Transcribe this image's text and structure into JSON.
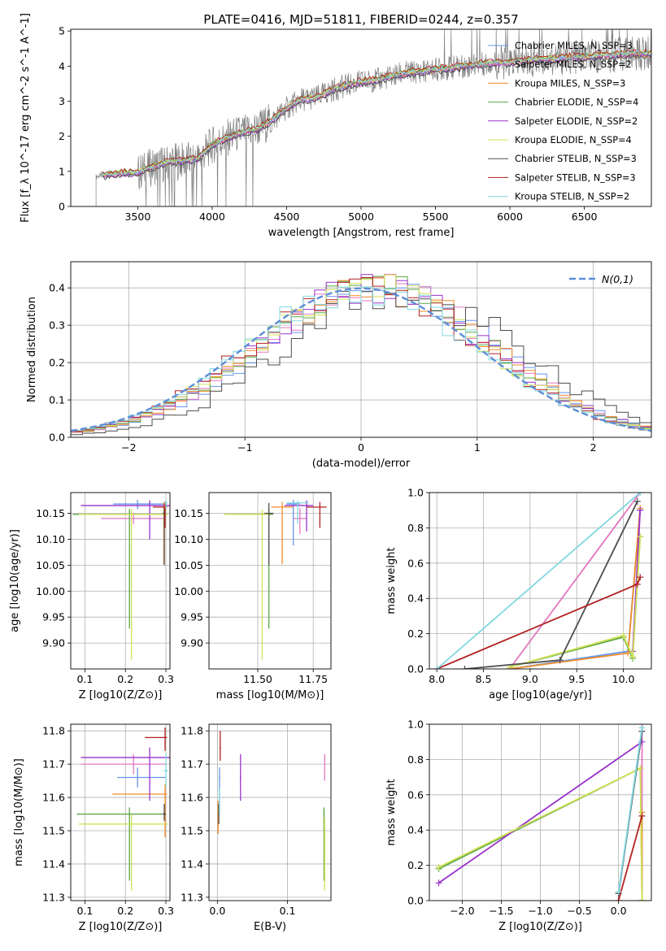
{
  "figure_title": "PLATE=0416, MJD=51811, FIBERID=0244, z=0.357",
  "palette": [
    "#6495ED",
    "#E377C2",
    "#F28C28",
    "#5BA845",
    "#9932CC",
    "#D4E157",
    "#4D4D4D",
    "#B22222",
    "#80D8E0"
  ],
  "legend_entries": [
    "Chabrier MILES, N_SSP=3",
    "Salpeter MILES, N_SSP=2",
    "Kroupa MILES, N_SSP=3",
    "Chabrier ELODIE, N_SSP=4",
    "Salpeter ELODIE, N_SSP=2",
    "Kroupa ELODIE, N_SSP=4",
    "Chabrier STELIB, N_SSP=3",
    "Salpeter STELIB, N_SSP=3",
    "Kroupa STELIB, N_SSP=2"
  ],
  "chart_data": [
    {
      "id": "spectrum",
      "type": "line",
      "title": "PLATE=0416, MJD=51811, FIBERID=0244, z=0.357",
      "xlabel": "wavelength [Angstrom, rest frame]",
      "ylabel": "Flux [f_λ 10^-17 erg cm^-2 s^-1 A^-1]",
      "xlim": [
        3050,
        6950
      ],
      "ylim": [
        0,
        5.05
      ],
      "xticks": [
        3500,
        4000,
        4500,
        5000,
        5500,
        6000,
        6500
      ],
      "yticks": [
        0,
        1,
        2,
        3,
        4,
        5
      ],
      "grid": false,
      "legend_placement": "upper-right",
      "x_start": 3220,
      "x_end": 6950,
      "data_anchors": {
        "x": [
          3220,
          3300,
          3400,
          3500,
          3550,
          3650,
          3700,
          3800,
          3900,
          4000,
          4100,
          4200,
          4300,
          4400,
          4500,
          4600,
          4700,
          4800,
          4900,
          5000,
          5100,
          5200,
          5300,
          5400,
          5500,
          5600,
          5700,
          5800,
          5900,
          6000,
          6100,
          6200,
          6300,
          6400,
          6500,
          6600,
          6700,
          6800,
          6950
        ],
        "y": [
          0.85,
          0.92,
          0.95,
          0.95,
          1.05,
          1.2,
          1.25,
          1.3,
          1.35,
          1.75,
          1.95,
          2.1,
          2.2,
          2.45,
          2.8,
          3.05,
          3.1,
          3.3,
          3.45,
          3.55,
          3.6,
          3.7,
          3.8,
          3.85,
          3.9,
          3.95,
          4.0,
          4.05,
          4.1,
          4.1,
          4.15,
          4.2,
          4.2,
          4.25,
          4.25,
          4.3,
          4.3,
          4.35,
          4.35
        ]
      }
    },
    {
      "id": "residuals",
      "type": "histogram",
      "xlabel": "(data-model)/error",
      "ylabel": "Normed distribution",
      "xlim": [
        -2.5,
        2.5
      ],
      "ylim": [
        0,
        0.47
      ],
      "xticks": [
        -2,
        -1,
        0,
        1,
        2
      ],
      "yticks": [
        0.0,
        0.1,
        0.2,
        0.3,
        0.4
      ],
      "grid": true,
      "bin_width": 0.1,
      "reference_curve": {
        "name": "N(0,1)",
        "style": "dashed",
        "color": "#5B8ED6"
      },
      "legend_placement": "upper-right"
    },
    {
      "id": "age-vs-Z",
      "type": "errorbar",
      "xlabel": "Z [log10(Z/Z⊙)]",
      "ylabel": "age [log10(age/yr)]",
      "xlim": [
        0.065,
        0.31
      ],
      "ylim": [
        9.85,
        10.19
      ],
      "xticks": [
        0.1,
        0.2,
        0.3
      ],
      "yticks": [
        9.9,
        9.95,
        10.0,
        10.05,
        10.1,
        10.15
      ],
      "grid": true,
      "points": [
        {
          "x": 0.23,
          "y": 10.168,
          "xerr": [
            0.06,
            0.07
          ],
          "yerr": [
            0.01,
            0.008
          ]
        },
        {
          "x": 0.22,
          "y": 10.14,
          "xerr": [
            0.08,
            0.08
          ],
          "yerr": [
            0.01,
            0.01
          ]
        },
        {
          "x": 0.295,
          "y": 10.162,
          "xerr": [
            0.004,
            0.004
          ],
          "yerr": [
            0.11,
            0.01
          ]
        },
        {
          "x": 0.21,
          "y": 10.148,
          "xerr": [
            0.14,
            0.09
          ],
          "yerr": [
            0.22,
            0.01
          ]
        },
        {
          "x": 0.26,
          "y": 10.165,
          "xerr": [
            0.17,
            0.05
          ],
          "yerr": [
            0.065,
            0.01
          ]
        },
        {
          "x": 0.215,
          "y": 10.148,
          "xerr": [
            0.13,
            0.09
          ],
          "yerr": [
            0.28,
            0.01
          ]
        },
        {
          "x": 0.296,
          "y": 10.15,
          "xerr": [
            0.004,
            0.004
          ],
          "yerr": [
            0.1,
            0.01
          ]
        },
        {
          "x": 0.298,
          "y": 10.162,
          "xerr": [
            0.03,
            0.005
          ],
          "yerr": [
            0.04,
            0.01
          ]
        },
        {
          "x": 0.3,
          "y": 10.17,
          "xerr": [
            0.004,
            0.004
          ],
          "yerr": [
            0.01,
            0.005
          ]
        }
      ]
    },
    {
      "id": "age-vs-mass",
      "type": "errorbar",
      "xlabel": "mass [log10(M/M⊙)]",
      "ylabel": "",
      "xlim": [
        11.28,
        11.83
      ],
      "ylim": [
        9.85,
        10.19
      ],
      "xticks": [
        11.5,
        11.75
      ],
      "yticks": [
        9.9,
        9.95,
        10.0,
        10.05,
        10.1,
        10.15
      ],
      "grid": true,
      "points": [
        {
          "x": 11.66,
          "y": 10.168,
          "xerr": [
            0.03,
            0.03
          ],
          "yerr": [
            0.08,
            0.008
          ]
        },
        {
          "x": 11.69,
          "y": 10.14,
          "xerr": [
            0.03,
            0.03
          ],
          "yerr": [
            0.03,
            0.02
          ]
        },
        {
          "x": 11.61,
          "y": 10.162,
          "xerr": [
            0.05,
            0.05
          ],
          "yerr": [
            0.11,
            0.01
          ]
        },
        {
          "x": 11.55,
          "y": 10.148,
          "xerr": [
            0.2,
            0.02
          ],
          "yerr": [
            0.22,
            0.01
          ]
        },
        {
          "x": 11.72,
          "y": 10.165,
          "xerr": [
            0.1,
            0.03
          ],
          "yerr": [
            0.05,
            0.01
          ]
        },
        {
          "x": 11.52,
          "y": 10.148,
          "xerr": [
            0.17,
            0.03
          ],
          "yerr": [
            0.28,
            0.01
          ]
        },
        {
          "x": 11.55,
          "y": 10.15,
          "xerr": [
            0.02,
            0.02
          ],
          "yerr": [
            0.1,
            0.02
          ]
        },
        {
          "x": 11.78,
          "y": 10.162,
          "xerr": [
            0.06,
            0.03
          ],
          "yerr": [
            0.04,
            0.01
          ]
        },
        {
          "x": 11.68,
          "y": 10.17,
          "xerr": [
            0.05,
            0.05
          ],
          "yerr": [
            0.04,
            0.005
          ]
        }
      ]
    },
    {
      "id": "massweight-vs-age",
      "type": "line",
      "xlabel": "age [log10(age/yr)]",
      "ylabel": "mass weight",
      "xlim": [
        7.92,
        10.3
      ],
      "ylim": [
        0,
        1
      ],
      "xticks": [
        8.0,
        8.5,
        9.0,
        9.5,
        10.0
      ],
      "yticks": [
        0.0,
        0.2,
        0.4,
        0.6,
        0.8,
        1.0
      ],
      "grid": true,
      "series": [
        {
          "x": [
            8.78,
            10.05,
            10.18
          ],
          "y": [
            0.0,
            0.1,
            0.9
          ]
        },
        {
          "x": [
            8.78,
            10.18
          ],
          "y": [
            0.0,
            1.0
          ]
        },
        {
          "x": [
            8.78,
            10.05,
            10.18
          ],
          "y": [
            0.0,
            0.09,
            0.91
          ]
        },
        {
          "x": [
            8.78,
            10.0,
            10.1,
            10.18
          ],
          "y": [
            0.01,
            0.18,
            0.06,
            0.75
          ]
        },
        {
          "x": [
            10.1,
            10.18
          ],
          "y": [
            0.1,
            0.9
          ]
        },
        {
          "x": [
            8.78,
            10.0,
            10.1,
            10.18
          ],
          "y": [
            0.01,
            0.19,
            0.07,
            0.75
          ]
        },
        {
          "x": [
            8.3,
            9.32,
            10.15
          ],
          "y": [
            0.0,
            0.05,
            0.95
          ]
        },
        {
          "x": [
            8.0,
            10.15,
            10.18
          ],
          "y": [
            0.0,
            0.48,
            0.52
          ]
        },
        {
          "x": [
            8.0,
            10.18
          ],
          "y": [
            0.0,
            1.0
          ]
        }
      ]
    },
    {
      "id": "mass-vs-Z",
      "type": "errorbar",
      "xlabel": "Z [log10(Z/Z⊙)]",
      "ylabel": "mass [log10(M/M⊙)]",
      "xlim": [
        0.065,
        0.31
      ],
      "ylim": [
        11.29,
        11.82
      ],
      "xticks": [
        0.1,
        0.2,
        0.3
      ],
      "yticks": [
        11.3,
        11.4,
        11.5,
        11.6,
        11.7,
        11.8
      ],
      "grid": true,
      "points": [
        {
          "x": 0.23,
          "y": 11.66,
          "xerr": [
            0.05,
            0.07
          ],
          "yerr": [
            0.03,
            0.03
          ]
        },
        {
          "x": 0.22,
          "y": 11.7,
          "xerr": [
            0.13,
            0.08
          ],
          "yerr": [
            0.03,
            0.03
          ]
        },
        {
          "x": 0.298,
          "y": 11.61,
          "xerr": [
            0.13,
            0.005
          ],
          "yerr": [
            0.13,
            0.03
          ]
        },
        {
          "x": 0.21,
          "y": 11.55,
          "xerr": [
            0.13,
            0.09
          ],
          "yerr": [
            0.2,
            0.02
          ]
        },
        {
          "x": 0.26,
          "y": 11.72,
          "xerr": [
            0.17,
            0.05
          ],
          "yerr": [
            0.13,
            0.03
          ]
        },
        {
          "x": 0.215,
          "y": 11.52,
          "xerr": [
            0.13,
            0.09
          ],
          "yerr": [
            0.2,
            0.03
          ]
        },
        {
          "x": 0.296,
          "y": 11.55,
          "xerr": [
            0.004,
            0.004
          ],
          "yerr": [
            0.02,
            0.03
          ]
        },
        {
          "x": 0.298,
          "y": 11.78,
          "xerr": [
            0.05,
            0.005
          ],
          "yerr": [
            0.04,
            0.03
          ]
        },
        {
          "x": 0.3,
          "y": 11.68,
          "xerr": [
            0.005,
            0.005
          ],
          "yerr": [
            0.05,
            0.05
          ]
        }
      ]
    },
    {
      "id": "mass-vs-EBV",
      "type": "errorbar",
      "xlabel": "E(B-V)",
      "ylabel": "",
      "xlim": [
        -0.012,
        0.162
      ],
      "ylim": [
        11.29,
        11.82
      ],
      "xticks": [
        0.0,
        0.1
      ],
      "yticks": [
        11.3,
        11.4,
        11.5,
        11.6,
        11.7,
        11.8
      ],
      "grid": true,
      "points": [
        {
          "x": 0.003,
          "y": 11.66,
          "xerr": [
            0.001,
            0.001
          ],
          "yerr": [
            0.1,
            0.03
          ]
        },
        {
          "x": 0.153,
          "y": 11.7,
          "xerr": [
            0.001,
            0.001
          ],
          "yerr": [
            0.05,
            0.03
          ]
        },
        {
          "x": 0.001,
          "y": 11.51,
          "xerr": [
            0.001,
            0.001
          ],
          "yerr": [
            0.02,
            0.08
          ]
        },
        {
          "x": 0.152,
          "y": 11.55,
          "xerr": [
            0.001,
            0.001
          ],
          "yerr": [
            0.2,
            0.02
          ]
        },
        {
          "x": 0.033,
          "y": 11.66,
          "xerr": [
            0.001,
            0.001
          ],
          "yerr": [
            0.07,
            0.07
          ]
        },
        {
          "x": 0.153,
          "y": 11.46,
          "xerr": [
            0.001,
            0.001
          ],
          "yerr": [
            0.14,
            0.08
          ]
        },
        {
          "x": 0.002,
          "y": 11.55,
          "xerr": [
            0.001,
            0.001
          ],
          "yerr": [
            0.03,
            0.03
          ]
        },
        {
          "x": 0.004,
          "y": 11.75,
          "xerr": [
            0.001,
            0.001
          ],
          "yerr": [
            0.04,
            0.05
          ]
        },
        {
          "x": 0.003,
          "y": 11.6,
          "xerr": [
            0.001,
            0.001
          ],
          "yerr": [
            0.05,
            0.03
          ]
        }
      ]
    },
    {
      "id": "massweight-vs-Z",
      "type": "line",
      "xlabel": "Z [log10(Z/Z⊙)]",
      "ylabel": "mass weight",
      "xlim": [
        -2.42,
        0.42
      ],
      "ylim": [
        0,
        1
      ],
      "xticks": [
        -2.0,
        -1.5,
        -1.0,
        -0.5,
        0.0
      ],
      "yticks": [
        0.0,
        0.2,
        0.4,
        0.6,
        0.8,
        1.0
      ],
      "grid": true,
      "series": [
        {
          "x": [
            0.0,
            0.3
          ],
          "y": [
            0.04,
            0.96
          ]
        },
        {
          "x": [
            0.3,
            0.3
          ],
          "y": [
            0.0,
            1.0
          ]
        },
        {
          "x": [
            0.3,
            0.3
          ],
          "y": [
            0.0,
            0.5
          ]
        },
        {
          "x": [
            -2.3,
            0.28,
            0.3
          ],
          "y": [
            0.18,
            0.75,
            0.0
          ]
        },
        {
          "x": [
            -2.3,
            0.3
          ],
          "y": [
            0.1,
            0.9
          ]
        },
        {
          "x": [
            -2.3,
            0.28,
            0.3
          ],
          "y": [
            0.19,
            0.75,
            0.0
          ]
        },
        {
          "x": [
            0.0,
            0.3
          ],
          "y": [
            0.04,
            0.96
          ]
        },
        {
          "x": [
            0.0,
            0.3
          ],
          "y": [
            0.0,
            0.48
          ]
        },
        {
          "x": [
            0.0,
            0.3
          ],
          "y": [
            0.05,
            0.98
          ]
        }
      ]
    }
  ]
}
